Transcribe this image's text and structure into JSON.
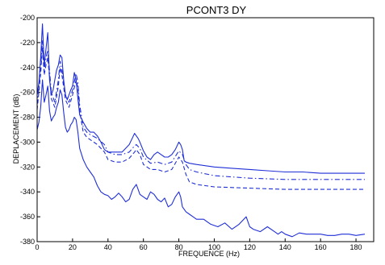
{
  "chart_data": {
    "type": "line",
    "title": "PCONT3   DY",
    "xlabel": "FREQUENCE (Hz)",
    "ylabel": "DEPLACEMENT (dB)",
    "xlim": [
      0,
      190
    ],
    "ylim": [
      -380,
      -200
    ],
    "xticks": [
      0,
      20,
      40,
      60,
      80,
      100,
      120,
      140,
      160,
      180
    ],
    "yticks": [
      -200,
      -220,
      -240,
      -260,
      -280,
      -300,
      -320,
      -340,
      -360,
      -380
    ],
    "grid": false,
    "legend": "none",
    "line_color": "#1f2fd6",
    "series": [
      {
        "style": "solid",
        "x": [
          0,
          1,
          2,
          3,
          4,
          5,
          6,
          7,
          8,
          9,
          10,
          11,
          12,
          13,
          14,
          15,
          16,
          17,
          18,
          19,
          20,
          21,
          22,
          23,
          24,
          26,
          28,
          30,
          32,
          34,
          36,
          38,
          40,
          44,
          48,
          52,
          54,
          55,
          56,
          57,
          58,
          60,
          62,
          64,
          66,
          68,
          70,
          72,
          74,
          76,
          78,
          80,
          81,
          82,
          83,
          84,
          86,
          90,
          100,
          110,
          120,
          130,
          140,
          150,
          160,
          170,
          180,
          185
        ],
        "y": [
          -262,
          -252,
          -232,
          -205,
          -238,
          -225,
          -212,
          -250,
          -262,
          -258,
          -250,
          -242,
          -238,
          -230,
          -232,
          -250,
          -262,
          -266,
          -262,
          -258,
          -255,
          -244,
          -250,
          -265,
          -278,
          -284,
          -289,
          -292,
          -292,
          -295,
          -300,
          -306,
          -308,
          -308,
          -308,
          -302,
          -296,
          -293,
          -295,
          -297,
          -300,
          -307,
          -312,
          -314,
          -310,
          -308,
          -310,
          -312,
          -312,
          -310,
          -306,
          -300,
          -302,
          -306,
          -315,
          -316,
          -317,
          -318,
          -320,
          -321,
          -322,
          -323,
          -324,
          -324,
          -325,
          -325,
          -325,
          -325
        ]
      },
      {
        "style": "dashdot",
        "x": [
          0,
          2,
          3,
          4,
          5,
          6,
          8,
          10,
          12,
          13,
          14,
          16,
          18,
          20,
          22,
          23,
          24,
          26,
          28,
          30,
          34,
          38,
          40,
          44,
          48,
          52,
          55,
          56,
          58,
          60,
          64,
          68,
          72,
          76,
          80,
          82,
          84,
          86,
          90,
          100,
          120,
          140,
          160,
          185
        ],
        "y": [
          -270,
          -240,
          -218,
          -242,
          -232,
          -226,
          -260,
          -268,
          -250,
          -235,
          -242,
          -262,
          -268,
          -258,
          -245,
          -252,
          -270,
          -288,
          -292,
          -294,
          -297,
          -302,
          -308,
          -310,
          -310,
          -308,
          -303,
          -302,
          -305,
          -312,
          -317,
          -316,
          -318,
          -316,
          -307,
          -310,
          -318,
          -322,
          -324,
          -327,
          -329,
          -330,
          -330,
          -330
        ]
      },
      {
        "style": "dashed",
        "x": [
          0,
          2,
          3,
          4,
          5,
          6,
          8,
          10,
          12,
          13,
          14,
          16,
          18,
          20,
          22,
          23,
          24,
          26,
          28,
          30,
          34,
          38,
          40,
          44,
          48,
          52,
          55,
          56,
          58,
          60,
          64,
          68,
          72,
          76,
          80,
          82,
          84,
          86,
          90,
          100,
          120,
          140,
          160,
          185
        ],
        "y": [
          -274,
          -245,
          -224,
          -246,
          -238,
          -232,
          -265,
          -272,
          -255,
          -240,
          -246,
          -266,
          -272,
          -262,
          -250,
          -256,
          -275,
          -292,
          -296,
          -298,
          -302,
          -308,
          -314,
          -316,
          -316,
          -313,
          -308,
          -306,
          -310,
          -318,
          -322,
          -322,
          -324,
          -322,
          -312,
          -316,
          -326,
          -332,
          -334,
          -336,
          -337,
          -338,
          -338,
          -338
        ]
      },
      {
        "style": "solid",
        "x": [
          0,
          1,
          2,
          3,
          4,
          5,
          6,
          7,
          8,
          9,
          10,
          11,
          12,
          13,
          14,
          15,
          16,
          17,
          18,
          19,
          20,
          21,
          22,
          23,
          24,
          26,
          28,
          30,
          32,
          34,
          36,
          38,
          40,
          42,
          44,
          46,
          48,
          50,
          52,
          54,
          56,
          57,
          58,
          60,
          62,
          64,
          66,
          68,
          70,
          72,
          74,
          76,
          78,
          80,
          81,
          82,
          84,
          86,
          88,
          90,
          94,
          98,
          102,
          106,
          110,
          114,
          118,
          119,
          120,
          122,
          126,
          130,
          134,
          136,
          138,
          140,
          144,
          148,
          152,
          156,
          160,
          164,
          168,
          172,
          176,
          180,
          185
        ],
        "y": [
          -290,
          -284,
          -272,
          -250,
          -268,
          -262,
          -255,
          -275,
          -283,
          -280,
          -278,
          -272,
          -268,
          -258,
          -262,
          -276,
          -288,
          -292,
          -290,
          -286,
          -284,
          -280,
          -282,
          -292,
          -305,
          -314,
          -320,
          -324,
          -328,
          -335,
          -340,
          -342,
          -343,
          -346,
          -344,
          -341,
          -344,
          -348,
          -346,
          -338,
          -334,
          -338,
          -342,
          -344,
          -346,
          -340,
          -342,
          -346,
          -348,
          -345,
          -352,
          -350,
          -344,
          -340,
          -344,
          -352,
          -356,
          -358,
          -360,
          -362,
          -362,
          -366,
          -368,
          -365,
          -370,
          -366,
          -360,
          -364,
          -368,
          -370,
          -372,
          -368,
          -372,
          -374,
          -372,
          -374,
          -376,
          -373,
          -374,
          -374,
          -374,
          -375,
          -375,
          -374,
          -374,
          -375,
          -374
        ]
      }
    ]
  }
}
